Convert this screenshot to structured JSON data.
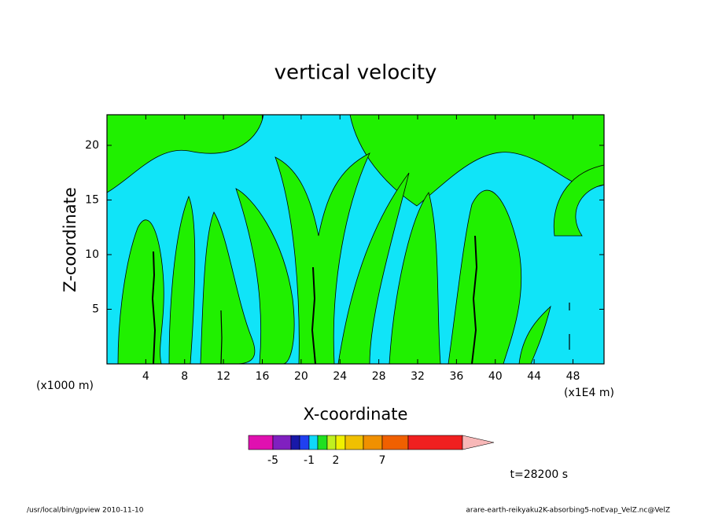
{
  "chart_data": {
    "type": "contour",
    "title": "vertical velocity",
    "xlabel": "X-coordinate",
    "ylabel": "Z-coordinate",
    "x_unit": "(x1000 m)",
    "x_unit2": "(x1E4 m)",
    "xlim": [
      0,
      51.2
    ],
    "ylim": [
      0,
      22.8
    ],
    "xticks": [
      4,
      8,
      12,
      16,
      20,
      24,
      28,
      32,
      36,
      40,
      44,
      48
    ],
    "yticks": [
      5,
      10,
      15,
      20
    ],
    "colorbar": {
      "colors": [
        "#e010b0",
        "#8020c0",
        "#1818a8",
        "#2040f0",
        "#10d8f8",
        "#20e020",
        "#c0f020",
        "#f0f000",
        "#f0c000",
        "#f09000",
        "#f06000",
        "#f02020",
        "#f88080"
      ],
      "extend_color": "#f8b8b8",
      "ticks": [
        -5,
        -1,
        2,
        7
      ]
    },
    "time_label": "t=28200 s",
    "footer_left": "/usr/local/bin/gpview  2010-11-10",
    "footer_right": "arare-earth-reikyaku2K-absorbing5-noEvap_VelZ.nc@VelZ"
  }
}
